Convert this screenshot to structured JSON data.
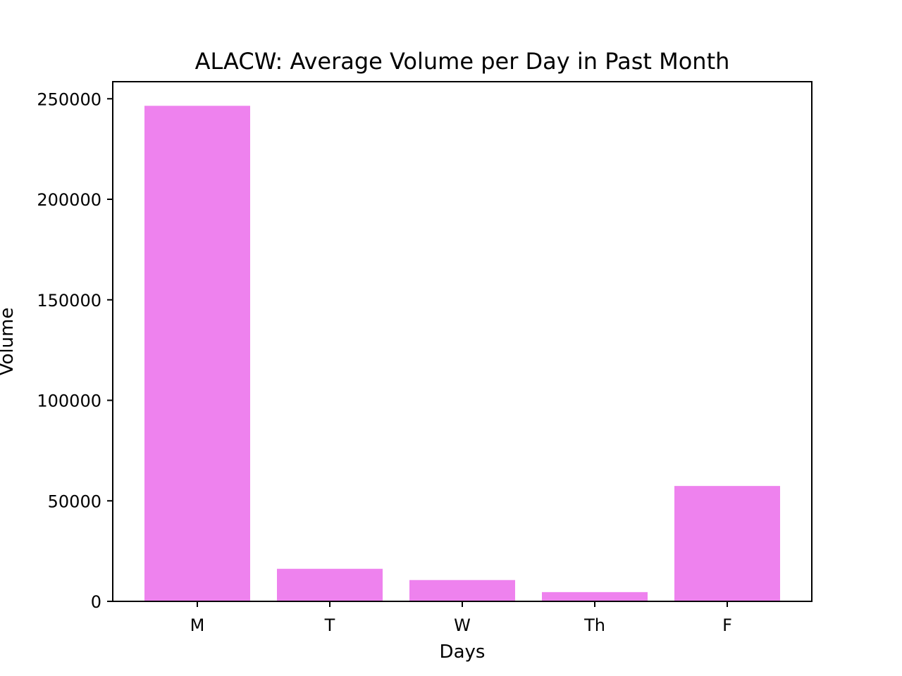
{
  "chart_data": {
    "type": "bar",
    "title": "ALACW: Average Volume per Day in Past Month",
    "xlabel": "Days",
    "ylabel": "Volume",
    "categories": [
      "M",
      "T",
      "W",
      "Th",
      "F"
    ],
    "values": [
      246500,
      16200,
      10600,
      4600,
      57400
    ],
    "ylim": [
      0,
      258500
    ],
    "yticks": [
      0,
      50000,
      100000,
      150000,
      200000,
      250000
    ],
    "grid": false,
    "bar_color": "#ee82ee"
  }
}
